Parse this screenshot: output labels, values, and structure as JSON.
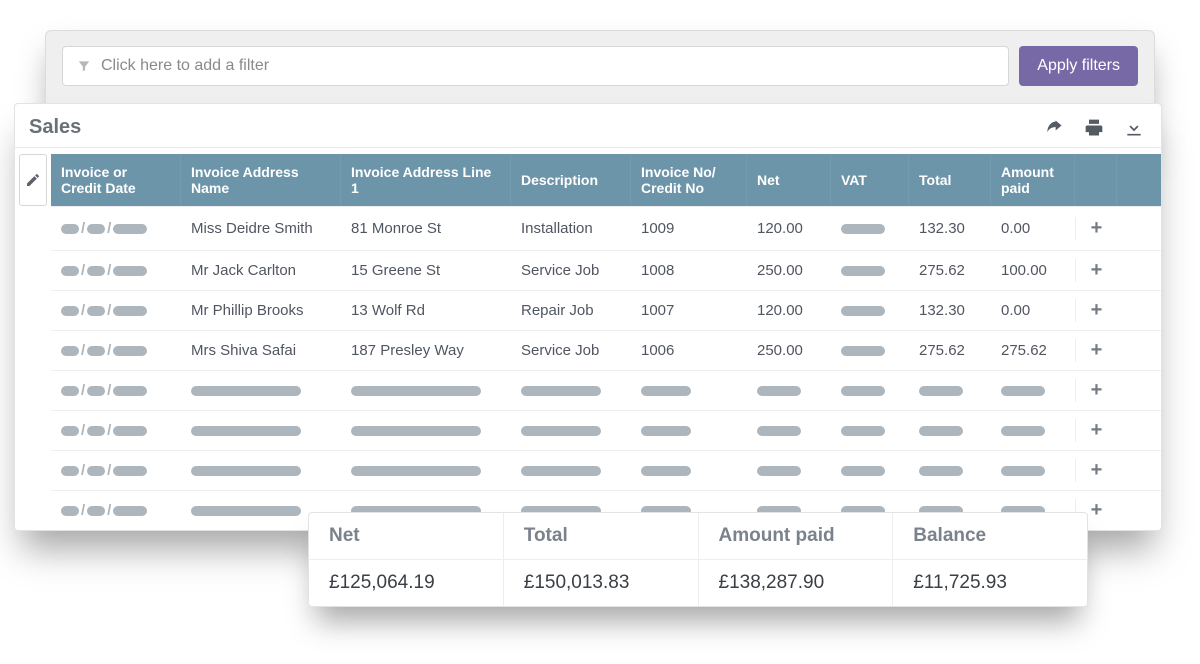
{
  "filter": {
    "placeholder": "Click here to add a filter",
    "apply_label": "Apply filters"
  },
  "panel": {
    "title": "Sales"
  },
  "columns": {
    "date": "Invoice or Credit Date",
    "name": "Invoice Address Name",
    "addr": "Invoice Address Line 1",
    "desc": "Description",
    "inv": "Invoice No/ Credit No",
    "net": "Net",
    "vat": "VAT",
    "total": "Total",
    "amt": "Amount paid"
  },
  "rows": [
    {
      "name": "Miss Deidre Smith",
      "addr": "81 Monroe St",
      "desc": "Installation",
      "inv": "1009",
      "net": "120.00",
      "total": "132.30",
      "amt": "0.00"
    },
    {
      "name": "Mr Jack Carlton",
      "addr": "15 Greene St",
      "desc": "Service Job",
      "inv": "1008",
      "net": "250.00",
      "total": "275.62",
      "amt": "100.00"
    },
    {
      "name": "Mr Phillip Brooks",
      "addr": "13 Wolf Rd",
      "desc": "Repair Job",
      "inv": "1007",
      "net": "120.00",
      "total": "132.30",
      "amt": "0.00"
    },
    {
      "name": "Mrs Shiva Safai",
      "addr": "187 Presley Way",
      "desc": "Service Job",
      "inv": "1006",
      "net": "250.00",
      "total": "275.62",
      "amt": "275.62"
    }
  ],
  "redacted_row_count": 4,
  "summary": {
    "net": {
      "label": "Net",
      "value": "£125,064.19"
    },
    "total": {
      "label": "Total",
      "value": "£150,013.83"
    },
    "amt": {
      "label": "Amount paid",
      "value": "£138,287.90"
    },
    "bal": {
      "label": "Balance",
      "value": "£11,725.93"
    }
  },
  "colors": {
    "header_bg": "#6d95aa",
    "apply_btn_bg": "#7768a6",
    "redact_bar": "#adb5bd",
    "text_muted": "#6b7076"
  }
}
